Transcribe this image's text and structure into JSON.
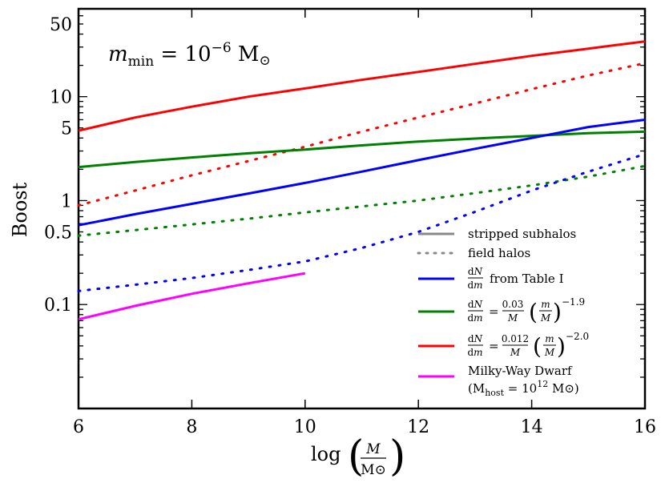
{
  "chart_data": {
    "type": "line",
    "title": "",
    "xlabel": "log (M / M⊙)",
    "ylabel": "Boost",
    "xlim": [
      6,
      16
    ],
    "ylim": [
      0.01,
      70
    ],
    "yscale": "log",
    "x_ticks": [
      6,
      8,
      10,
      12,
      14,
      16
    ],
    "x_tick_labels": [
      "6",
      "8",
      "10",
      "12",
      "14",
      "16"
    ],
    "y_ticks": [
      0.1,
      0.5,
      1,
      5,
      10,
      50
    ],
    "y_tick_labels": [
      "0.1",
      "0.5",
      "1",
      "5",
      "10",
      "50"
    ],
    "annotation": {
      "m": "m",
      "sub": "min",
      "eq": " = 10",
      "exp": "−6",
      "unit": " M",
      "sun": "⊙"
    },
    "legend_position": "lower-right",
    "legend": {
      "stripped": "stripped subhalos",
      "field": "field halos",
      "table": "from Table I",
      "green_coef": "0.03",
      "green_exp": "−1.9",
      "red_coef": "0.012",
      "red_exp": "−2.0",
      "dwarf_line1": "Milky-Way Dwarf",
      "dwarf_line2_a": "(M",
      "dwarf_line2_sub": "host",
      "dwarf_line2_b": " = 10",
      "dwarf_line2_exp": "12",
      "dwarf_line2_c": " M⊙)"
    },
    "series": [
      {
        "name": "red stripped",
        "color": "#ff0000",
        "style": "solid",
        "x": [
          6,
          7,
          8,
          9,
          10,
          11,
          12,
          13,
          14,
          15,
          16
        ],
        "y": [
          4.7,
          6.3,
          8.0,
          10.0,
          12.0,
          14.5,
          17.3,
          20.7,
          24.7,
          29.0,
          34.0
        ]
      },
      {
        "name": "red field",
        "color": "#ff0000",
        "style": "dotted",
        "x": [
          6,
          7,
          8,
          9,
          10,
          11,
          12,
          13,
          14,
          15,
          16
        ],
        "y": [
          0.9,
          1.25,
          1.75,
          2.4,
          3.3,
          4.6,
          6.3,
          8.6,
          11.8,
          16.0,
          21.0
        ]
      },
      {
        "name": "green stripped",
        "color": "#008000",
        "style": "solid",
        "x": [
          6,
          7,
          8,
          9,
          10,
          11,
          12,
          13,
          14,
          15,
          16
        ],
        "y": [
          2.1,
          2.35,
          2.6,
          2.85,
          3.1,
          3.4,
          3.7,
          3.95,
          4.2,
          4.45,
          4.6
        ]
      },
      {
        "name": "green field",
        "color": "#008000",
        "style": "dotted",
        "x": [
          6,
          7,
          8,
          9,
          10,
          11,
          12,
          13,
          14,
          15,
          16
        ],
        "y": [
          0.46,
          0.52,
          0.59,
          0.67,
          0.77,
          0.88,
          1.0,
          1.18,
          1.4,
          1.7,
          2.15
        ]
      },
      {
        "name": "blue stripped",
        "color": "#0000ff",
        "style": "solid",
        "x": [
          6,
          7,
          8,
          9,
          10,
          11,
          12,
          13,
          14,
          15,
          16
        ],
        "y": [
          0.58,
          0.74,
          0.93,
          1.17,
          1.48,
          1.9,
          2.45,
          3.15,
          4.0,
          5.1,
          6.0
        ]
      },
      {
        "name": "blue field",
        "color": "#0000ff",
        "style": "dotted",
        "x": [
          6,
          7,
          8,
          9,
          10,
          11,
          12,
          13,
          14,
          15,
          16
        ],
        "y": [
          0.135,
          0.155,
          0.18,
          0.215,
          0.26,
          0.35,
          0.5,
          0.78,
          1.25,
          1.9,
          2.8
        ]
      },
      {
        "name": "Milky-Way Dwarf",
        "color": "#ff00ff",
        "style": "solid",
        "x": [
          6,
          7,
          8,
          9,
          10
        ],
        "y": [
          0.072,
          0.097,
          0.127,
          0.16,
          0.2
        ]
      }
    ]
  }
}
